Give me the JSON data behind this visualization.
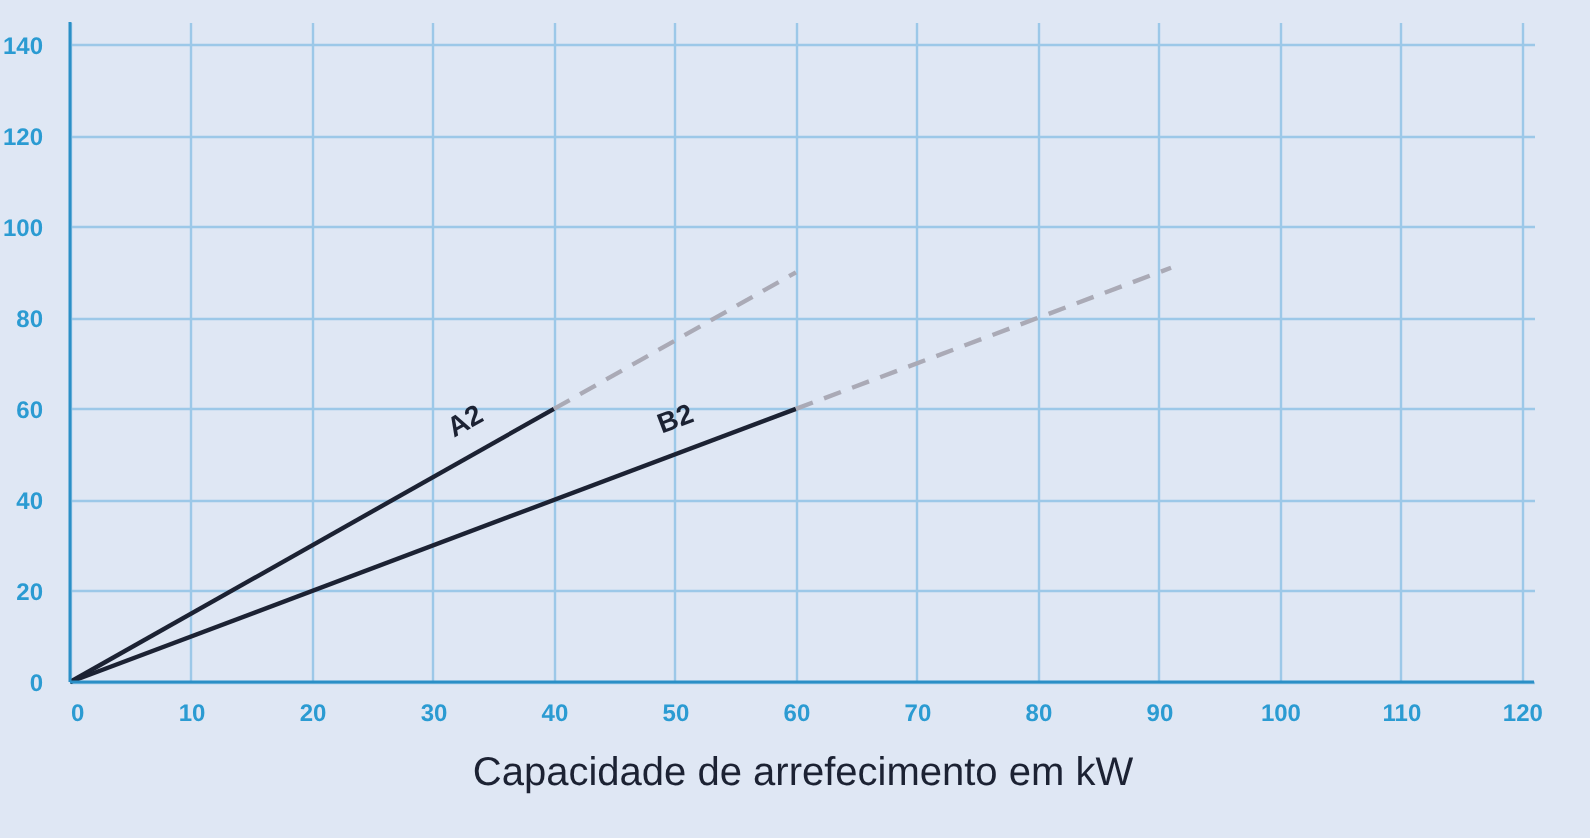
{
  "chart_data": {
    "type": "line",
    "xlabel": "Capacidade de arrefecimento em kW",
    "xlim": [
      0,
      121
    ],
    "xticks": [
      0,
      10,
      20,
      30,
      40,
      50,
      60,
      70,
      80,
      90,
      100,
      110,
      120
    ],
    "ylim": [
      0,
      145
    ],
    "yticks": [
      0,
      20,
      40,
      60,
      80,
      100,
      120,
      140
    ],
    "grid": true,
    "marker": "none",
    "series": [
      {
        "name": "A2",
        "color": "#1c2233",
        "line_style": "solid",
        "x": [
          0,
          40
        ],
        "values": [
          0,
          60
        ]
      },
      {
        "color": "#aaaab6",
        "line_style": "dashed",
        "x": [
          40,
          60
        ],
        "values": [
          60,
          90
        ]
      },
      {
        "name": "B2",
        "color": "#1c2233",
        "line_style": "solid",
        "x": [
          0,
          60
        ],
        "values": [
          0,
          60
        ]
      },
      {
        "color": "#aaaab6",
        "line_style": "dashed",
        "x": [
          60,
          91
        ],
        "values": [
          60,
          91
        ]
      }
    ]
  }
}
